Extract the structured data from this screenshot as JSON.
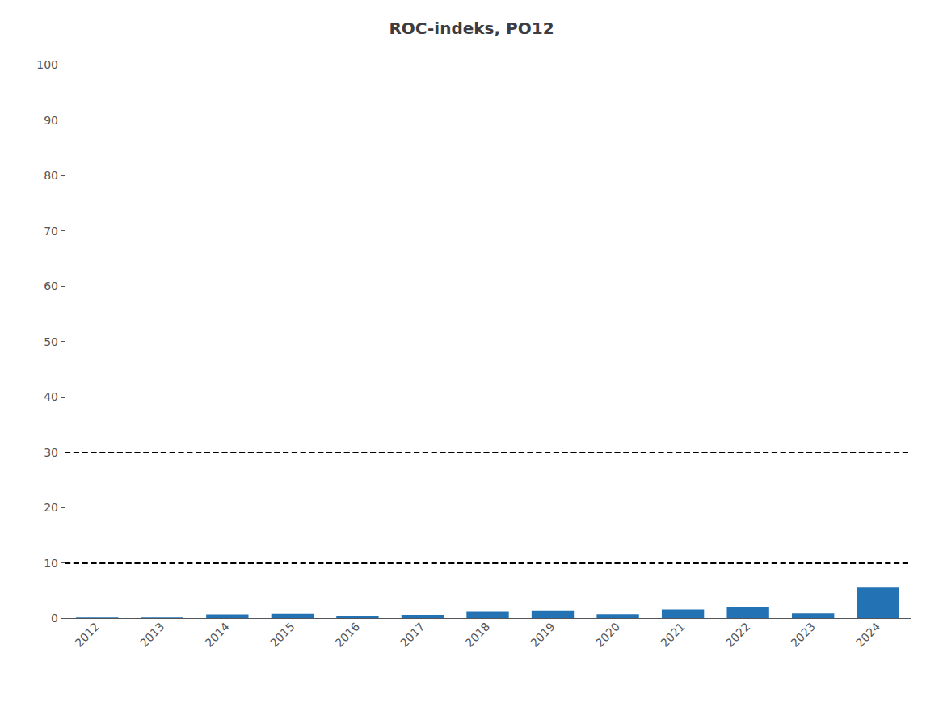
{
  "chart_data": {
    "type": "bar",
    "title": "ROC-indeks, PO12",
    "categories": [
      "2012",
      "2013",
      "2014",
      "2015",
      "2016",
      "2017",
      "2018",
      "2019",
      "2020",
      "2021",
      "2022",
      "2023",
      "2024"
    ],
    "values": [
      0.1,
      0.1,
      0.65,
      0.75,
      0.45,
      0.6,
      1.25,
      1.35,
      0.7,
      1.55,
      2.05,
      0.85,
      5.5
    ],
    "color": "#2272b4",
    "hlines": [
      10,
      30
    ],
    "ylim": [
      0,
      100
    ],
    "yticks": [
      0,
      10,
      20,
      30,
      40,
      50,
      60,
      70,
      80,
      90,
      100
    ],
    "grid": false
  }
}
